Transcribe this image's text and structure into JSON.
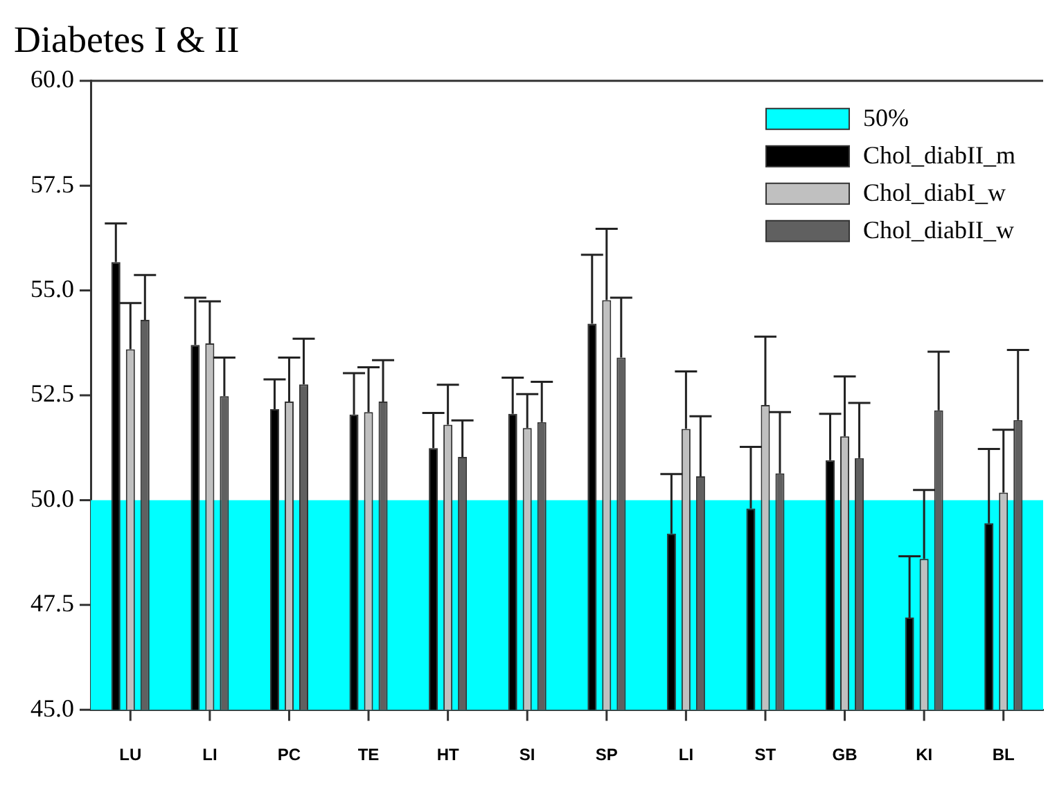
{
  "chart_data": {
    "type": "bar",
    "title": "Diabetes I & II",
    "categories": [
      "LU",
      "LI",
      "PC",
      "TE",
      "HT",
      "SI",
      "SP",
      "LI",
      "ST",
      "GB",
      "KI",
      "BL"
    ],
    "series": [
      {
        "name": "Chol_diabII_m",
        "color": "#000000",
        "values": [
          55.68,
          53.7,
          52.17,
          52.04,
          51.24,
          52.06,
          54.21,
          49.2,
          49.8,
          50.95,
          47.2,
          49.45
        ],
        "errors": [
          [
            55.68,
            56.6
          ],
          [
            53.7,
            54.83
          ],
          [
            52.17,
            52.88
          ],
          [
            52.04,
            53.03
          ],
          [
            51.24,
            52.08
          ],
          [
            52.06,
            52.92
          ],
          [
            54.21,
            55.85
          ],
          [
            49.2,
            50.62
          ],
          [
            49.8,
            51.27
          ],
          [
            50.95,
            52.06
          ],
          [
            47.2,
            48.66
          ],
          [
            49.45,
            51.22
          ]
        ]
      },
      {
        "name": "Chol_diabI_w",
        "color": "#c0c0c0",
        "values": [
          53.6,
          53.74,
          52.35,
          52.1,
          51.8,
          51.72,
          54.77,
          51.7,
          52.27,
          51.52,
          48.6,
          50.18
        ],
        "errors": [
          [
            53.6,
            54.7
          ],
          [
            53.74,
            54.74
          ],
          [
            52.35,
            53.4
          ],
          [
            52.1,
            53.17
          ],
          [
            51.8,
            52.75
          ],
          [
            51.72,
            52.53
          ],
          [
            54.77,
            56.47
          ],
          [
            51.7,
            53.07
          ],
          [
            52.27,
            53.9
          ],
          [
            51.52,
            52.95
          ],
          [
            48.6,
            50.24
          ],
          [
            50.18,
            51.68
          ]
        ]
      },
      {
        "name": "Chol_diabII_w",
        "color": "#606060",
        "values": [
          54.3,
          52.48,
          52.76,
          52.35,
          51.03,
          51.86,
          53.4,
          50.57,
          50.64,
          51.0,
          52.14,
          51.91
        ],
        "errors": [
          [
            54.3,
            55.37
          ],
          [
            52.48,
            53.4
          ],
          [
            52.76,
            53.85
          ],
          [
            52.35,
            53.34
          ],
          [
            51.03,
            51.9
          ],
          [
            51.86,
            52.82
          ],
          [
            53.4,
            54.83
          ],
          [
            50.57,
            52.0
          ],
          [
            50.64,
            52.1
          ],
          [
            51.0,
            52.32
          ],
          [
            52.14,
            53.54
          ],
          [
            51.91,
            53.58
          ]
        ]
      }
    ],
    "bands": [
      {
        "axis": "y",
        "from": 45,
        "to": 50,
        "label": "50%",
        "color": "#00ffff"
      }
    ],
    "ylim": [
      45,
      60
    ],
    "yticks": [
      {
        "value": 45,
        "label": "45.0"
      },
      {
        "value": 47.5,
        "label": "47.5"
      },
      {
        "value": 50,
        "label": "50.0"
      },
      {
        "value": 52.5,
        "label": "52.5"
      },
      {
        "value": 55,
        "label": "55.0"
      },
      {
        "value": 57.5,
        "label": "57.5"
      },
      {
        "value": 60,
        "label": "60.0"
      }
    ],
    "grid": false,
    "legend": "top right"
  }
}
